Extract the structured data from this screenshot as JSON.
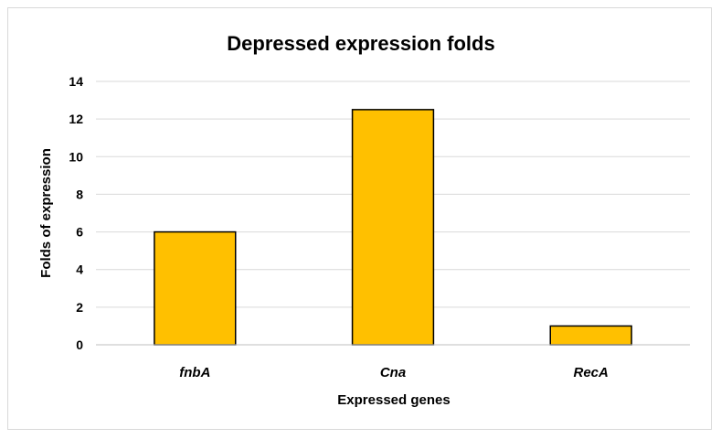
{
  "chart_data": {
    "type": "bar",
    "title": "Depressed expression folds",
    "xlabel": "Expressed genes",
    "ylabel": "Folds of expression",
    "categories": [
      "fnbA",
      "Cna",
      "RecA"
    ],
    "values": [
      6,
      12.5,
      1
    ],
    "ylim": [
      0,
      14
    ],
    "yticks": [
      "0",
      "2",
      "4",
      "6",
      "8",
      "10",
      "12",
      "14"
    ],
    "grid": true,
    "legend": "none",
    "bar_color": "#FFC000",
    "bar_edge_color": "#000000"
  }
}
